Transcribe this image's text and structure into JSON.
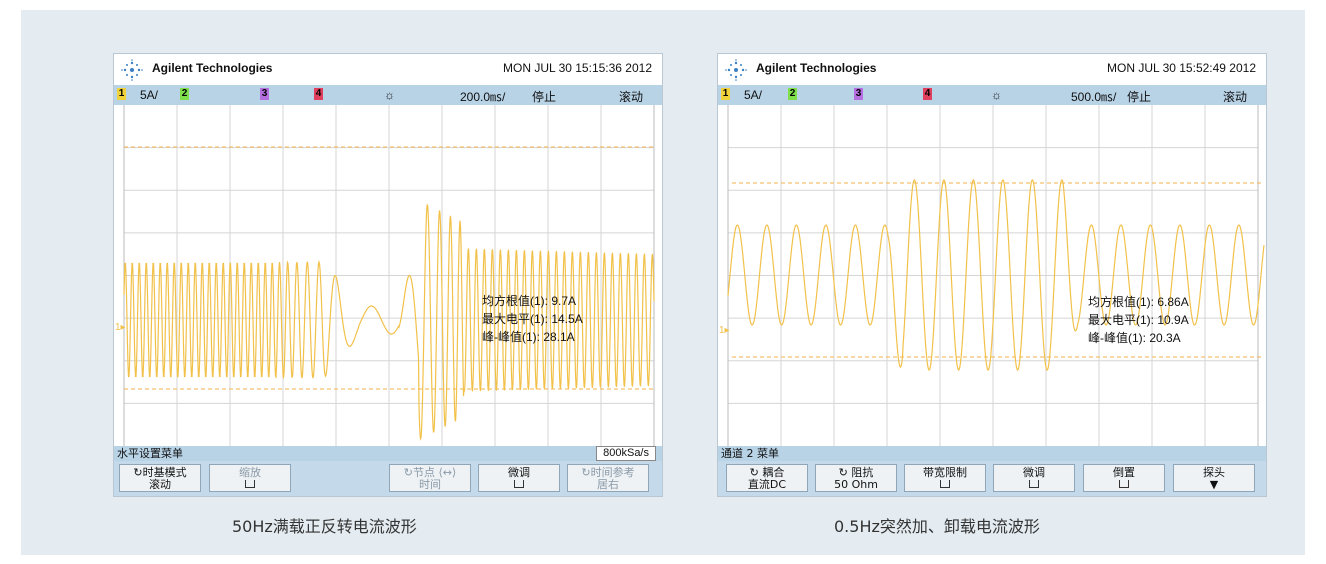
{
  "colors": {
    "panel_bg": "#e4ecf2",
    "status_bar": "#b8d2e6",
    "trace": "#f2c14a",
    "trigger_line": "#f5b24a",
    "grid": "#d5d5d5"
  },
  "scopes": [
    {
      "brand": "Agilent Technologies",
      "datetime": "MON JUL 30 15:15:36 2012",
      "status": {
        "ch1": "1",
        "scale": "5A/",
        "ch2": "2",
        "ch3": "3",
        "ch4": "4",
        "sun_icon": "☼",
        "timebase": "200.0㎳/",
        "run_state": "停止",
        "mode": "滚动"
      },
      "measurements": {
        "rms": "均方根值(1): 9.7A",
        "max": "最大电平(1): 14.5A",
        "pk_pk": "峰-峰值(1): 28.1A"
      },
      "menu_title": "水平设置菜单",
      "sample_rate": "800kSa/s",
      "softkeys": [
        {
          "line1": "↻时基模式",
          "line2": "滚动",
          "enabled": true
        },
        {
          "line1": "缩放",
          "line2": "",
          "enabled": false,
          "checkbox": true
        },
        {
          "line1": "↻节点 ⟨↔⟩",
          "line2": "时间",
          "enabled": false
        },
        {
          "line1": "微调",
          "line2": "",
          "enabled": true,
          "checkbox": true
        },
        {
          "line1": "↻时间参考",
          "line2": "居右",
          "enabled": false
        }
      ],
      "caption": "50Hz满载正反转电流波形"
    },
    {
      "brand": "Agilent Technologies",
      "datetime": "MON JUL 30 15:52:49 2012",
      "status": {
        "ch1": "1",
        "scale": "5A/",
        "ch2": "2",
        "ch3": "3",
        "ch4": "4",
        "sun_icon": "☼",
        "timebase": "500.0㎳/",
        "run_state": "停止",
        "mode": "滚动"
      },
      "measurements": {
        "rms": "均方根值(1): 6.86A",
        "max": "最大电平(1): 10.9A",
        "pk_pk": "峰-峰值(1): 20.3A"
      },
      "menu_title": "通道 2 菜单",
      "softkeys": [
        {
          "line1": "↻ 耦合",
          "line2": "直流DC",
          "enabled": true
        },
        {
          "line1": "↻ 阻抗",
          "line2": "50 Ohm",
          "enabled": true
        },
        {
          "line1": "带宽限制",
          "line2": "",
          "enabled": true,
          "checkbox": true
        },
        {
          "line1": "微调",
          "line2": "",
          "enabled": true,
          "checkbox": true
        },
        {
          "line1": "倒置",
          "line2": "",
          "enabled": true,
          "checkbox": true
        },
        {
          "line1": "探头",
          "line2": "▼",
          "enabled": true
        }
      ],
      "caption": "0.5Hz突然加、卸载电流波形"
    }
  ]
}
